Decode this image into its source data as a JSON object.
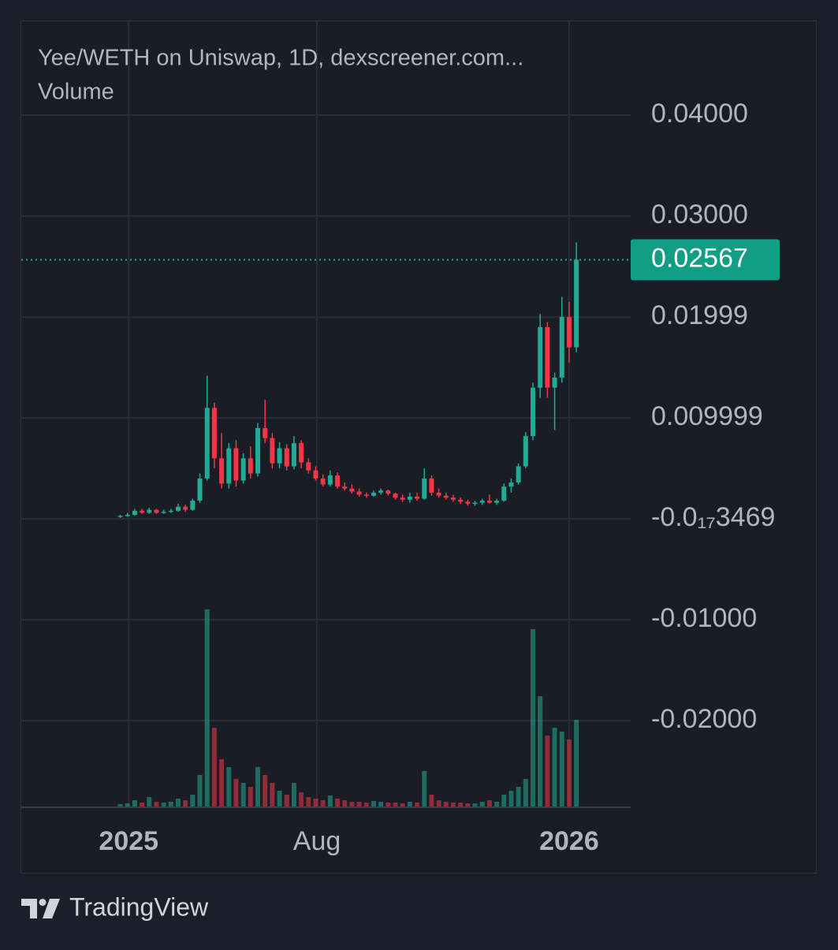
{
  "chart_data": {
    "type": "candlestick",
    "title": "Yee/WETH on Uniswap, 1D, dexscreener.com...",
    "subtitle": "Volume",
    "x": [
      0,
      6,
      12,
      18,
      24,
      30,
      36,
      42,
      48,
      54,
      60,
      66,
      72,
      78,
      84,
      90,
      96,
      102,
      108,
      114,
      120,
      126,
      132,
      138,
      144,
      150,
      156,
      162,
      168,
      174,
      180,
      186,
      192,
      198,
      204,
      210,
      216,
      222,
      228,
      234,
      240,
      246,
      252,
      258,
      264,
      270,
      276,
      282,
      288,
      294,
      300,
      306,
      312,
      318,
      324,
      330,
      336,
      342,
      348,
      354,
      360,
      366,
      372,
      378
    ],
    "open": [
      0.0002,
      0.0003,
      0.0004,
      0.0008,
      0.0006,
      0.0009,
      0.0006,
      0.0007,
      0.0008,
      0.0012,
      0.0009,
      0.0018,
      0.004,
      0.011,
      0.006,
      0.0035,
      0.007,
      0.0038,
      0.006,
      0.0045,
      0.009,
      0.008,
      0.0055,
      0.007,
      0.0052,
      0.0075,
      0.0056,
      0.0048,
      0.004,
      0.0034,
      0.0043,
      0.0032,
      0.003,
      0.0027,
      0.0024,
      0.0023,
      0.0026,
      0.0028,
      0.0025,
      0.0021,
      0.0019,
      0.0022,
      0.002,
      0.004,
      0.0026,
      0.0023,
      0.0021,
      0.0019,
      0.0017,
      0.0015,
      0.0016,
      0.0018,
      0.0016,
      0.0018,
      0.0032,
      0.0036,
      0.0052,
      0.0082,
      0.013,
      0.019,
      0.013,
      0.014,
      0.02,
      0.017
    ],
    "high": [
      0.0004,
      0.0006,
      0.001,
      0.001,
      0.0011,
      0.001,
      0.0009,
      0.001,
      0.0015,
      0.0014,
      0.002,
      0.0045,
      0.0142,
      0.0115,
      0.0085,
      0.0075,
      0.0078,
      0.0065,
      0.0072,
      0.0095,
      0.0118,
      0.0085,
      0.0076,
      0.0074,
      0.0082,
      0.0078,
      0.006,
      0.0052,
      0.0044,
      0.0048,
      0.0046,
      0.0036,
      0.0034,
      0.003,
      0.0026,
      0.0028,
      0.003,
      0.0029,
      0.0026,
      0.0024,
      0.0026,
      0.0026,
      0.005,
      0.0043,
      0.003,
      0.0026,
      0.0024,
      0.0021,
      0.0019,
      0.0018,
      0.002,
      0.0024,
      0.002,
      0.0035,
      0.004,
      0.0055,
      0.0086,
      0.0135,
      0.0203,
      0.0195,
      0.0145,
      0.022,
      0.0215,
      0.0274
    ],
    "low": [
      0.0001,
      0.0002,
      0.0003,
      0.0005,
      0.0005,
      0.0005,
      0.0005,
      0.0006,
      0.0007,
      0.0007,
      0.0008,
      0.0016,
      0.0038,
      0.005,
      0.003,
      0.003,
      0.0032,
      0.0035,
      0.004,
      0.0042,
      0.0075,
      0.005,
      0.005,
      0.0048,
      0.0049,
      0.005,
      0.0045,
      0.0038,
      0.0032,
      0.0032,
      0.003,
      0.0028,
      0.0025,
      0.0022,
      0.0021,
      0.0022,
      0.0024,
      0.0023,
      0.0019,
      0.0017,
      0.0016,
      0.0018,
      0.0019,
      0.0023,
      0.0021,
      0.0019,
      0.0017,
      0.0015,
      0.0013,
      0.0013,
      0.0014,
      0.0015,
      0.0014,
      0.0017,
      0.0026,
      0.0034,
      0.005,
      0.0078,
      0.012,
      0.012,
      0.0088,
      0.0135,
      0.0155,
      0.0165
    ],
    "close": [
      0.0003,
      0.0004,
      0.0008,
      0.0006,
      0.0009,
      0.0006,
      0.0007,
      0.0008,
      0.0012,
      0.0009,
      0.0018,
      0.004,
      0.011,
      0.006,
      0.0035,
      0.007,
      0.0038,
      0.006,
      0.0045,
      0.009,
      0.008,
      0.0055,
      0.007,
      0.0052,
      0.0075,
      0.0056,
      0.0048,
      0.004,
      0.0034,
      0.0043,
      0.0032,
      0.003,
      0.0027,
      0.0024,
      0.0023,
      0.0026,
      0.0028,
      0.0025,
      0.0021,
      0.0019,
      0.0022,
      0.002,
      0.004,
      0.0026,
      0.0023,
      0.0021,
      0.0019,
      0.0017,
      0.0015,
      0.0016,
      0.0018,
      0.0016,
      0.0018,
      0.0032,
      0.0036,
      0.0052,
      0.0082,
      0.013,
      0.019,
      0.013,
      0.014,
      0.02,
      0.017,
      0.02567
    ],
    "volume": [
      3,
      4,
      8,
      5,
      12,
      6,
      5,
      6,
      10,
      8,
      15,
      40,
      250,
      100,
      60,
      50,
      35,
      30,
      25,
      50,
      40,
      30,
      20,
      15,
      30,
      18,
      12,
      10,
      8,
      14,
      10,
      8,
      6,
      6,
      5,
      7,
      6,
      5,
      5,
      4,
      6,
      5,
      45,
      15,
      8,
      6,
      5,
      5,
      4,
      4,
      6,
      8,
      6,
      15,
      20,
      25,
      35,
      225,
      140,
      90,
      100,
      95,
      85,
      110
    ],
    "volume_lim": [
      0,
      260
    ],
    "xlim": [
      -82,
      423
    ],
    "xticks": [
      {
        "value": 7,
        "label": "2025"
      },
      {
        "value": 163,
        "label": "Aug"
      },
      {
        "value": 372,
        "label": "2026"
      }
    ],
    "ylim": [
      -0.0285,
      0.0493
    ],
    "yticks": [
      {
        "value": 0.04,
        "label": "0.04000"
      },
      {
        "value": 0.03,
        "label": "0.03000"
      },
      0.01999,
      0.009999,
      {
        "value": -3.469e-18,
        "label": "-0.0₁₇3469"
      },
      {
        "value": -0.01,
        "label": "-0.01000"
      },
      {
        "value": -0.02,
        "label": "-0.02000"
      }
    ],
    "last_price": 0.02567,
    "up_color": "#22ab94",
    "down_color": "#f23645",
    "grid": true
  },
  "footer": {
    "brand": "TradingView"
  }
}
